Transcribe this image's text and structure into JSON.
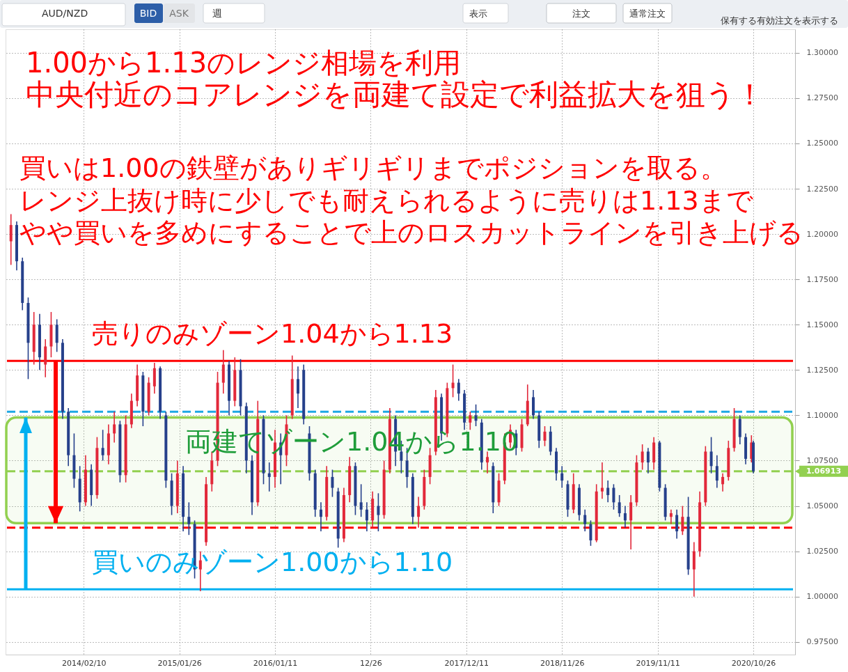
{
  "chart_data": {
    "type": "candlestick",
    "title": "AUD/NZD",
    "x": [
      "2013-05-20",
      "2013-06-10",
      "2013-07-01",
      "2013-07-22",
      "2013-08-12",
      "2013-09-02",
      "2013-09-23",
      "2013-10-14",
      "2013-11-04",
      "2013-11-25",
      "2013-12-16",
      "2014-01-06",
      "2014-01-27",
      "2014-02-17",
      "2014-03-10",
      "2014-03-31",
      "2014-04-21",
      "2014-05-12",
      "2014-06-02",
      "2014-06-23",
      "2014-07-14",
      "2014-08-04",
      "2014-08-25",
      "2014-09-15",
      "2014-10-06",
      "2014-10-27",
      "2014-11-17",
      "2014-12-08",
      "2014-12-29",
      "2015-01-19",
      "2015-02-09",
      "2015-03-02",
      "2015-03-23",
      "2015-04-13",
      "2015-05-04",
      "2015-05-25",
      "2015-06-15",
      "2015-07-06",
      "2015-07-27",
      "2015-08-17",
      "2015-09-07",
      "2015-09-28",
      "2015-10-19",
      "2015-11-09",
      "2015-11-30",
      "2015-12-21",
      "2016-01-11",
      "2016-02-01",
      "2016-02-22",
      "2016-03-14",
      "2016-04-04",
      "2016-04-25",
      "2016-05-16",
      "2016-06-06",
      "2016-06-27",
      "2016-07-18",
      "2016-08-08",
      "2016-08-29",
      "2016-09-19",
      "2016-10-10",
      "2016-10-31",
      "2016-11-21",
      "2016-12-12",
      "2017-01-02",
      "2017-01-23",
      "2017-02-13",
      "2017-03-06",
      "2017-03-27",
      "2017-04-17",
      "2017-05-08",
      "2017-05-29",
      "2017-06-19",
      "2017-07-10",
      "2017-07-31",
      "2017-08-21",
      "2017-09-11",
      "2017-10-02",
      "2017-10-23",
      "2017-11-13",
      "2017-12-04",
      "2017-12-25",
      "2018-01-15",
      "2018-02-05",
      "2018-02-26",
      "2018-03-19",
      "2018-04-09",
      "2018-04-30",
      "2018-05-21",
      "2018-06-11",
      "2018-07-02",
      "2018-07-23",
      "2018-08-13",
      "2018-09-03",
      "2018-09-24",
      "2018-10-15",
      "2018-11-05",
      "2018-11-26",
      "2018-12-17",
      "2019-01-07",
      "2019-01-28",
      "2019-02-18",
      "2019-03-11",
      "2019-04-01",
      "2019-04-22",
      "2019-05-13",
      "2019-06-03",
      "2019-06-24",
      "2019-07-15",
      "2019-08-05",
      "2019-08-26",
      "2019-09-16",
      "2019-10-07",
      "2019-10-28",
      "2019-11-18",
      "2019-12-09",
      "2019-12-30",
      "2020-01-20",
      "2020-02-10",
      "2020-03-02",
      "2020-03-23",
      "2020-04-13",
      "2020-05-04",
      "2020-05-25",
      "2020-06-15",
      "2020-07-06",
      "2020-07-27",
      "2020-08-17",
      "2020-09-07",
      "2020-09-28",
      "2020-10-19",
      "2020-10-26"
    ],
    "ohlc": [
      [
        1.196,
        1.211,
        1.183,
        1.205
      ],
      [
        1.205,
        1.207,
        1.18,
        1.185
      ],
      [
        1.185,
        1.187,
        1.158,
        1.162
      ],
      [
        1.162,
        1.165,
        1.12,
        1.14
      ],
      [
        1.135,
        1.157,
        1.128,
        1.15
      ],
      [
        1.15,
        1.156,
        1.125,
        1.132
      ],
      [
        1.128,
        1.142,
        1.121,
        1.138
      ],
      [
        1.138,
        1.157,
        1.132,
        1.15
      ],
      [
        1.15,
        1.153,
        1.135,
        1.14
      ],
      [
        1.14,
        1.142,
        1.098,
        1.102
      ],
      [
        1.102,
        1.104,
        1.072,
        1.078
      ],
      [
        1.078,
        1.09,
        1.06,
        1.065
      ],
      [
        1.065,
        1.072,
        1.047,
        1.052
      ],
      [
        1.052,
        1.078,
        1.05,
        1.07
      ],
      [
        1.07,
        1.073,
        1.05,
        1.056
      ],
      [
        1.056,
        1.088,
        1.054,
        1.082
      ],
      [
        1.082,
        1.092,
        1.075,
        1.078
      ],
      [
        1.078,
        1.095,
        1.073,
        1.09
      ],
      [
        1.09,
        1.102,
        1.085,
        1.095
      ],
      [
        1.095,
        1.097,
        1.063,
        1.067
      ],
      [
        1.067,
        1.1,
        1.063,
        1.095
      ],
      [
        1.095,
        1.112,
        1.093,
        1.108
      ],
      [
        1.108,
        1.128,
        1.105,
        1.122
      ],
      [
        1.122,
        1.124,
        1.094,
        1.102
      ],
      [
        1.102,
        1.121,
        1.1,
        1.118
      ],
      [
        1.116,
        1.129,
        1.112,
        1.126
      ],
      [
        1.126,
        1.127,
        1.098,
        1.102
      ],
      [
        1.1,
        1.102,
        1.06,
        1.064
      ],
      [
        1.064,
        1.068,
        1.045,
        1.05
      ],
      [
        1.05,
        1.075,
        1.046,
        1.068
      ],
      [
        1.068,
        1.072,
        1.036,
        1.044
      ],
      [
        1.044,
        1.052,
        1.034,
        1.04
      ],
      [
        1.04,
        1.042,
        1.01,
        1.015
      ],
      [
        1.015,
        1.025,
        1.003,
        1.02
      ],
      [
        1.03,
        1.066,
        1.028,
        1.062
      ],
      [
        1.062,
        1.08,
        1.058,
        1.075
      ],
      [
        1.075,
        1.124,
        1.072,
        1.118
      ],
      [
        1.118,
        1.136,
        1.112,
        1.128
      ],
      [
        1.128,
        1.13,
        1.1,
        1.108
      ],
      [
        1.108,
        1.132,
        1.105,
        1.125
      ],
      [
        1.125,
        1.131,
        1.1,
        1.105
      ],
      [
        1.105,
        1.107,
        1.068,
        1.075
      ],
      [
        1.075,
        1.078,
        1.045,
        1.052
      ],
      [
        1.052,
        1.108,
        1.05,
        1.098
      ],
      [
        1.098,
        1.1,
        1.062,
        1.068
      ],
      [
        1.068,
        1.074,
        1.058,
        1.066
      ],
      [
        1.066,
        1.092,
        1.06,
        1.085
      ],
      [
        1.085,
        1.09,
        1.062,
        1.078
      ],
      [
        1.078,
        1.1,
        1.072,
        1.095
      ],
      [
        1.1,
        1.133,
        1.098,
        1.12
      ],
      [
        1.12,
        1.127,
        1.104,
        1.112
      ],
      [
        1.125,
        1.128,
        1.095,
        1.098
      ],
      [
        1.09,
        1.094,
        1.064,
        1.068
      ],
      [
        1.068,
        1.07,
        1.044,
        1.048
      ],
      [
        1.048,
        1.052,
        1.036,
        1.044
      ],
      [
        1.044,
        1.072,
        1.042,
        1.066
      ],
      [
        1.066,
        1.07,
        1.055,
        1.06
      ],
      [
        1.058,
        1.06,
        1.027,
        1.032
      ],
      [
        1.032,
        1.06,
        1.03,
        1.056
      ],
      [
        1.056,
        1.077,
        1.052,
        1.072
      ],
      [
        1.072,
        1.074,
        1.045,
        1.05
      ],
      [
        1.052,
        1.062,
        1.044,
        1.048
      ],
      [
        1.048,
        1.052,
        1.036,
        1.042
      ],
      [
        1.042,
        1.058,
        1.038,
        1.054
      ],
      [
        1.05,
        1.057,
        1.036,
        1.045
      ],
      [
        1.045,
        1.075,
        1.043,
        1.07
      ],
      [
        1.07,
        1.104,
        1.068,
        1.098
      ],
      [
        1.098,
        1.1,
        1.072,
        1.08
      ],
      [
        1.08,
        1.086,
        1.068,
        1.075
      ],
      [
        1.075,
        1.082,
        1.06,
        1.066
      ],
      [
        1.066,
        1.068,
        1.04,
        1.044
      ],
      [
        1.044,
        1.055,
        1.038,
        1.05
      ],
      [
        1.05,
        1.07,
        1.048,
        1.066
      ],
      [
        1.066,
        1.082,
        1.062,
        1.078
      ],
      [
        1.08,
        1.114,
        1.078,
        1.11
      ],
      [
        1.11,
        1.112,
        1.086,
        1.09
      ],
      [
        1.09,
        1.118,
        1.088,
        1.115
      ],
      [
        1.115,
        1.128,
        1.11,
        1.118
      ],
      [
        1.118,
        1.12,
        1.108,
        1.112
      ],
      [
        1.112,
        1.114,
        1.092,
        1.096
      ],
      [
        1.096,
        1.102,
        1.092,
        1.1
      ],
      [
        1.1,
        1.106,
        1.094,
        1.097
      ],
      [
        1.096,
        1.098,
        1.07,
        1.074
      ],
      [
        1.074,
        1.08,
        1.068,
        1.077
      ],
      [
        1.072,
        1.074,
        1.046,
        1.052
      ],
      [
        1.052,
        1.068,
        1.05,
        1.064
      ],
      [
        1.064,
        1.09,
        1.062,
        1.085
      ],
      [
        1.085,
        1.095,
        1.082,
        1.092
      ],
      [
        1.09,
        1.092,
        1.078,
        1.082
      ],
      [
        1.082,
        1.098,
        1.08,
        1.095
      ],
      [
        1.095,
        1.117,
        1.094,
        1.108
      ],
      [
        1.11,
        1.114,
        1.098,
        1.1
      ],
      [
        1.1,
        1.102,
        1.082,
        1.086
      ],
      [
        1.086,
        1.094,
        1.083,
        1.091
      ],
      [
        1.091,
        1.094,
        1.078,
        1.08
      ],
      [
        1.08,
        1.082,
        1.064,
        1.068
      ],
      [
        1.068,
        1.072,
        1.06,
        1.064
      ],
      [
        1.062,
        1.064,
        1.044,
        1.048
      ],
      [
        1.048,
        1.068,
        1.046,
        1.062
      ],
      [
        1.06,
        1.062,
        1.042,
        1.045
      ],
      [
        1.045,
        1.048,
        1.036,
        1.04
      ],
      [
        1.04,
        1.042,
        1.028,
        1.031
      ],
      [
        1.031,
        1.062,
        1.03,
        1.058
      ],
      [
        1.058,
        1.074,
        1.054,
        1.06
      ],
      [
        1.06,
        1.064,
        1.052,
        1.056
      ],
      [
        1.06,
        1.062,
        1.048,
        1.052
      ],
      [
        1.052,
        1.056,
        1.044,
        1.046
      ],
      [
        1.046,
        1.05,
        1.038,
        1.042
      ],
      [
        1.042,
        1.056,
        1.026,
        1.052
      ],
      [
        1.052,
        1.078,
        1.05,
        1.074
      ],
      [
        1.074,
        1.084,
        1.07,
        1.08
      ],
      [
        1.08,
        1.082,
        1.068,
        1.074
      ],
      [
        1.074,
        1.088,
        1.07,
        1.085
      ],
      [
        1.085,
        1.086,
        1.058,
        1.06
      ],
      [
        1.06,
        1.062,
        1.042,
        1.044
      ],
      [
        1.044,
        1.048,
        1.04,
        1.046
      ],
      [
        1.045,
        1.048,
        1.032,
        1.036
      ],
      [
        1.036,
        1.05,
        1.034,
        1.044
      ],
      [
        1.044,
        1.055,
        1.012,
        1.015
      ],
      [
        1.015,
        1.03,
        1.0,
        1.025
      ],
      [
        1.025,
        1.058,
        1.022,
        1.052
      ],
      [
        1.052,
        1.083,
        1.05,
        1.08
      ],
      [
        1.08,
        1.088,
        1.068,
        1.072
      ],
      [
        1.072,
        1.078,
        1.06,
        1.064
      ],
      [
        1.062,
        1.068,
        1.058,
        1.066
      ],
      [
        1.066,
        1.086,
        1.064,
        1.082
      ],
      [
        1.082,
        1.104,
        1.08,
        1.098
      ],
      [
        1.098,
        1.1,
        1.084,
        1.088
      ],
      [
        1.088,
        1.09,
        1.073,
        1.076
      ],
      [
        1.076,
        1.089,
        1.074,
        1.085
      ],
      [
        1.085,
        1.086,
        1.068,
        1.06913
      ]
    ],
    "colors": [
      "#e2283a",
      "#26408b",
      "#26408b",
      "#26408b",
      "#e2283a",
      "#26408b",
      "#e2283a",
      "#e2283a",
      "#26408b",
      "#26408b",
      "#26408b",
      "#26408b",
      "#26408b",
      "#e2283a",
      "#26408b",
      "#e2283a",
      "#26408b",
      "#e2283a",
      "#e2283a",
      "#26408b",
      "#e2283a",
      "#e2283a",
      "#e2283a",
      "#26408b",
      "#e2283a",
      "#e2283a",
      "#26408b",
      "#26408b",
      "#26408b",
      "#e2283a",
      "#26408b",
      "#26408b",
      "#26408b",
      "#e2283a",
      "#e2283a",
      "#e2283a",
      "#e2283a",
      "#e2283a",
      "#26408b",
      "#e2283a",
      "#26408b",
      "#26408b",
      "#26408b",
      "#e2283a",
      "#26408b",
      "#26408b",
      "#e2283a",
      "#26408b",
      "#e2283a",
      "#e2283a",
      "#26408b",
      "#26408b",
      "#26408b",
      "#26408b",
      "#26408b",
      "#e2283a",
      "#26408b",
      "#26408b",
      "#e2283a",
      "#e2283a",
      "#26408b",
      "#26408b",
      "#26408b",
      "#e2283a",
      "#26408b",
      "#e2283a",
      "#e2283a",
      "#26408b",
      "#26408b",
      "#26408b",
      "#26408b",
      "#e2283a",
      "#e2283a",
      "#e2283a",
      "#e2283a",
      "#26408b",
      "#e2283a",
      "#e2283a",
      "#26408b",
      "#26408b",
      "#e2283a",
      "#26408b",
      "#26408b",
      "#e2283a",
      "#26408b",
      "#e2283a",
      "#e2283a",
      "#e2283a",
      "#26408b",
      "#e2283a",
      "#e2283a",
      "#26408b",
      "#26408b",
      "#e2283a",
      "#26408b",
      "#26408b",
      "#26408b",
      "#26408b",
      "#e2283a",
      "#26408b",
      "#26408b",
      "#26408b",
      "#e2283a",
      "#e2283a",
      "#26408b",
      "#26408b",
      "#26408b",
      "#26408b",
      "#e2283a",
      "#e2283a",
      "#e2283a",
      "#26408b",
      "#e2283a",
      "#26408b",
      "#26408b",
      "#e2283a",
      "#26408b",
      "#e2283a",
      "#26408b",
      "#e2283a",
      "#e2283a",
      "#e2283a",
      "#26408b",
      "#26408b",
      "#e2283a",
      "#e2283a",
      "#e2283a",
      "#26408b",
      "#26408b",
      "#e2283a",
      "#26408b"
    ],
    "xlim": [
      "2013-05-13",
      "2021-03-15"
    ],
    "xticks": [
      {
        "value": "2014-02-10",
        "label": "2014/02/10"
      },
      {
        "value": "2015-01-26",
        "label": "2015/01/26"
      },
      {
        "value": "2016-01-11",
        "label": "2016/01/11"
      },
      {
        "value": "2016-12-26",
        "label": "12/26"
      },
      {
        "value": "2017-12-11",
        "label": "2017/12/11"
      },
      {
        "value": "2018-11-26",
        "label": "2018/11/26"
      },
      {
        "value": "2019-11-11",
        "label": "2019/11/11"
      },
      {
        "value": "2020-10-26",
        "label": "2020/10/26"
      }
    ],
    "ylim": [
      0.968,
      1.313
    ],
    "yticks": [
      {
        "value": 0.975,
        "label": "0.97500"
      },
      {
        "value": 1.0,
        "label": "1.00000"
      },
      {
        "value": 1.025,
        "label": "1.02500"
      },
      {
        "value": 1.05,
        "label": "1.05000"
      },
      {
        "value": 1.075,
        "label": "1.07500"
      },
      {
        "value": 1.1,
        "label": "1.10000"
      },
      {
        "value": 1.125,
        "label": "1.12500"
      },
      {
        "value": 1.15,
        "label": "1.15000"
      },
      {
        "value": 1.175,
        "label": "1.17500"
      },
      {
        "value": 1.2,
        "label": "1.20000"
      },
      {
        "value": 1.225,
        "label": "1.22500"
      },
      {
        "value": 1.25,
        "label": "1.25000"
      },
      {
        "value": 1.275,
        "label": "1.27500"
      },
      {
        "value": 1.3,
        "label": "1.30000"
      }
    ],
    "grid": true,
    "ref_lines": [
      {
        "axis": "y",
        "value": 1.13,
        "color": "#ff0000",
        "line_style": "solid",
        "label": "売りのみゾーン1.04から1.13"
      },
      {
        "axis": "y",
        "value": 1.102,
        "color": "#1ea7e4",
        "line_style": "dashed"
      },
      {
        "axis": "y",
        "value": 1.06913,
        "color": "#92d050",
        "line_style": "dashed",
        "label": "1.06913"
      },
      {
        "axis": "y",
        "value": 1.038,
        "color": "#ff0000",
        "line_style": "dashed"
      },
      {
        "axis": "y",
        "value": 1.004,
        "color": "#00b0f0",
        "line_style": "solid",
        "label": "買いのみゾーン1.00から1.10"
      }
    ],
    "bands": [
      {
        "axis": "y",
        "from": 1.0405,
        "to": 1.0988,
        "color": "#92d050",
        "label": "両建てゾーン1.04から1.10"
      }
    ],
    "annotations": [
      "1.00から1.13のレンジ相場を利用",
      "中央付近のコアレンジを両建て設定で利益拡大を狙う！",
      "買いは1.00の鉄壁がありギリギリまでポジションを取る。",
      "レンジ上抜け時に少しでも耐えられるように売りは1.13まで",
      "やや買いを多めにすることで上のロスカットラインを引き上げる",
      "BID",
      "ASK",
      "週",
      "表示",
      "注文",
      "通常注文",
      "保有する有効注文を表示する"
    ]
  }
}
